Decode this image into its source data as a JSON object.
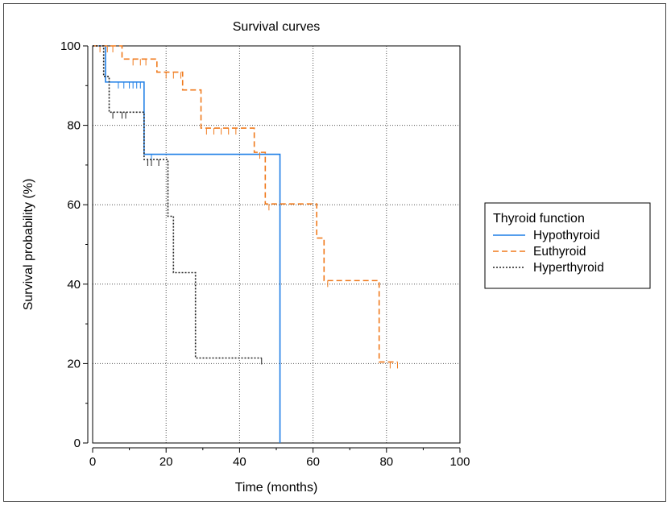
{
  "chart_data": {
    "type": "line",
    "title": "Survival curves",
    "xlabel": "Time (months)",
    "ylabel": "Survival probability (%)",
    "xlim": [
      0,
      100
    ],
    "ylim": [
      0,
      100
    ],
    "xticks": [
      "0",
      "20",
      "40",
      "60",
      "80",
      "100"
    ],
    "yticks": [
      "0",
      "20",
      "40",
      "60",
      "80",
      "100"
    ],
    "grid": true,
    "legend": {
      "title": "Thyroid function",
      "placement": "right"
    },
    "series": [
      {
        "name": "Hypothyroid",
        "color": "#1f7fe6",
        "dash": "solid",
        "steps": [
          [
            0,
            100
          ],
          [
            3.5,
            90.9
          ],
          [
            14,
            72.7
          ],
          [
            51,
            0
          ]
        ],
        "end": 51,
        "censored": [
          [
            7,
            90.9
          ],
          [
            8.5,
            90.9
          ],
          [
            10,
            90.9
          ],
          [
            11,
            90.9
          ],
          [
            12,
            90.9
          ],
          [
            13,
            90.9
          ],
          [
            16,
            72.7
          ]
        ]
      },
      {
        "name": "Euthyroid",
        "color": "#f07a1c",
        "dash": "dashed",
        "steps": [
          [
            0,
            100
          ],
          [
            8,
            96.7
          ],
          [
            17.5,
            93.4
          ],
          [
            24.5,
            88.9
          ],
          [
            29.5,
            79.3
          ],
          [
            44,
            73.2
          ],
          [
            47,
            60.2
          ],
          [
            61,
            51.6
          ],
          [
            63,
            40.9
          ],
          [
            78,
            20.4
          ]
        ],
        "end": 83,
        "censored": [
          [
            2,
            100
          ],
          [
            4,
            100
          ],
          [
            5.5,
            100
          ],
          [
            11,
            96.7
          ],
          [
            13,
            96.7
          ],
          [
            14.5,
            96.7
          ],
          [
            20,
            93.4
          ],
          [
            22,
            93.4
          ],
          [
            24,
            93.4
          ],
          [
            31,
            79.3
          ],
          [
            33,
            79.3
          ],
          [
            35,
            79.3
          ],
          [
            37,
            79.3
          ],
          [
            39,
            79.3
          ],
          [
            45.5,
            73.2
          ],
          [
            48,
            60.2
          ],
          [
            64,
            40.9
          ],
          [
            81,
            20.4
          ],
          [
            83,
            20.4
          ]
        ]
      },
      {
        "name": "Hyperthyroid",
        "color": "#222222",
        "dash": "dotted",
        "steps": [
          [
            0,
            100
          ],
          [
            3,
            92.3
          ],
          [
            4.5,
            83.3
          ],
          [
            14,
            71.4
          ],
          [
            20.5,
            57.1
          ],
          [
            22,
            42.9
          ],
          [
            28,
            21.4
          ]
        ],
        "end": 46,
        "censored": [
          [
            5.5,
            83.3
          ],
          [
            8,
            83.3
          ],
          [
            9,
            83.3
          ],
          [
            15,
            71.4
          ],
          [
            16,
            71.4
          ],
          [
            18,
            71.4
          ],
          [
            46,
            21.4
          ]
        ]
      }
    ]
  }
}
